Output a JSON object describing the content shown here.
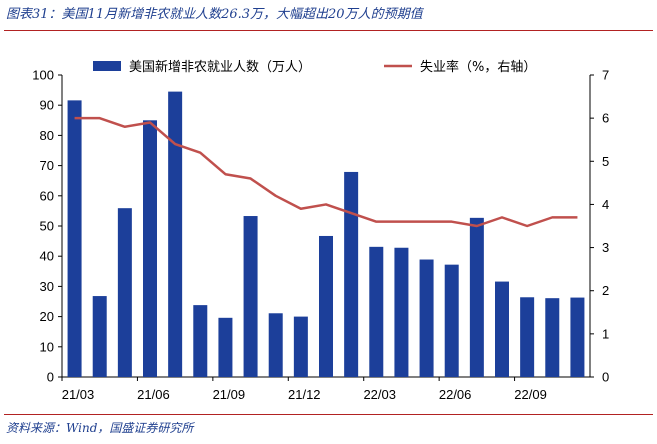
{
  "title": "图表31：美国11月新增非农就业人数26.3万，大幅超出20万人的预期值",
  "source": "资料来源：Wind，国盛证券研究所",
  "chart_data": {
    "type": "bar",
    "x": [
      "21/03",
      "21/04",
      "21/05",
      "21/06",
      "21/07",
      "21/08",
      "21/09",
      "21/10",
      "21/11",
      "21/12",
      "22/01",
      "22/02",
      "22/03",
      "22/04",
      "22/05",
      "22/06",
      "22/07",
      "22/08",
      "22/09",
      "22/10",
      "22/11"
    ],
    "x_tick_labels": [
      "21/03",
      "21/06",
      "21/09",
      "21/12",
      "22/03",
      "22/06",
      "22/09"
    ],
    "series": [
      {
        "name": "美国新增非农就业人数（万人）",
        "type": "bar",
        "axis": "left",
        "color": "#1c3f9a",
        "values": [
          91.6,
          26.8,
          55.9,
          85.0,
          94.5,
          23.8,
          19.6,
          53.3,
          21.1,
          20.0,
          46.7,
          67.9,
          43.1,
          42.8,
          38.9,
          37.2,
          52.7,
          31.6,
          26.4,
          26.1,
          26.3
        ]
      },
      {
        "name": "失业率（%，右轴）",
        "type": "line",
        "axis": "right",
        "color": "#c0504d",
        "values": [
          6.0,
          6.0,
          5.8,
          5.9,
          5.4,
          5.2,
          4.7,
          4.6,
          4.2,
          3.9,
          4.0,
          3.8,
          3.6,
          3.6,
          3.6,
          3.6,
          3.5,
          3.7,
          3.5,
          3.7,
          3.7
        ]
      }
    ],
    "ylim_left": [
      0,
      100
    ],
    "yticks_left": [
      0,
      10,
      20,
      30,
      40,
      50,
      60,
      70,
      80,
      90,
      100
    ],
    "ylim_right": [
      0,
      7
    ],
    "yticks_right": [
      0,
      1,
      2,
      3,
      4,
      5,
      6,
      7
    ],
    "grid": false,
    "legend_position": "top"
  }
}
